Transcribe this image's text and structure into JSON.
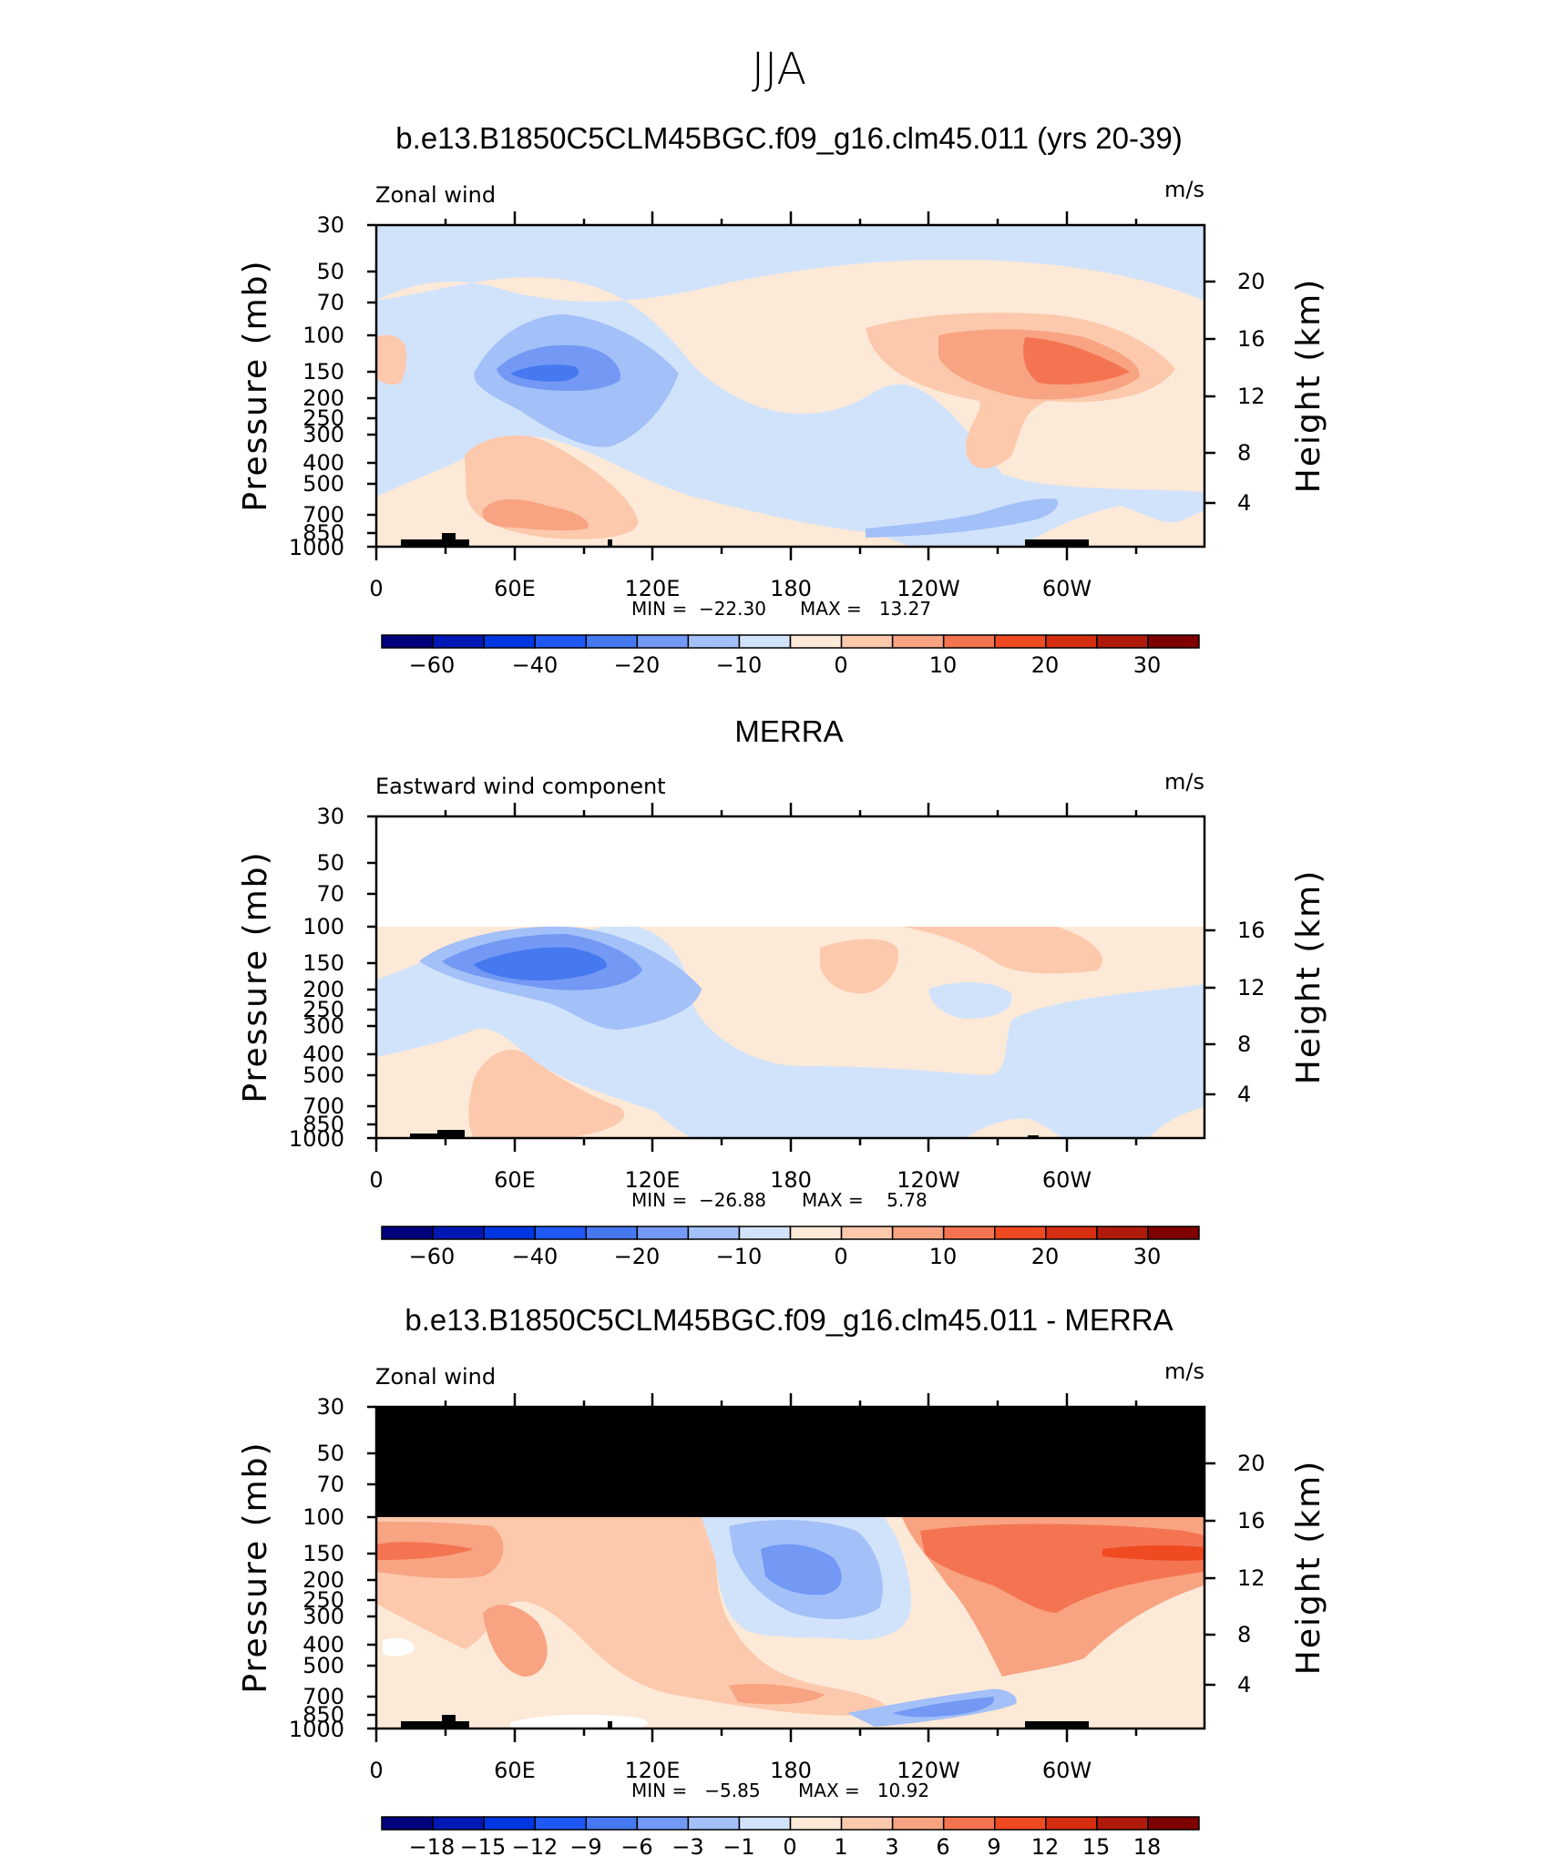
{
  "figure": {
    "title": "JJA"
  },
  "units_label": "m/s",
  "axes": {
    "left_label": "Pressure (mb)",
    "right_label": "Height (km)",
    "pressure_ticks": [
      "30",
      "50",
      "70",
      "100",
      "150",
      "200",
      "250",
      "300",
      "400",
      "500",
      "700",
      "850",
      "1000"
    ],
    "x_ticks": [
      "0",
      "60E",
      "120E",
      "180",
      "120W",
      "60W"
    ]
  },
  "colorbar_main": {
    "colors": [
      "#00007d",
      "#0019b4",
      "#0036e1",
      "#1f58f5",
      "#4679f0",
      "#7399f5",
      "#a3c0f8",
      "#d1e3fb",
      "#fde9d7",
      "#fcc9ad",
      "#f8a382",
      "#f47452",
      "#f04a22",
      "#d62e10",
      "#b01a0a",
      "#7f0000"
    ],
    "labels": [
      "−60",
      "−40",
      "−20",
      "−10",
      "0",
      "10",
      "20",
      "30"
    ]
  },
  "colorbar_diff": {
    "colors": [
      "#00007d",
      "#0019b4",
      "#0036e1",
      "#1f58f5",
      "#4679f0",
      "#7399f5",
      "#a3c0f8",
      "#d1e3fb",
      "#fde9d7",
      "#fcc9ad",
      "#f8a382",
      "#f47452",
      "#f04a22",
      "#d62e10",
      "#b01a0a",
      "#7f0000"
    ],
    "labels": [
      "−18",
      "−15",
      "−12",
      "−9",
      "−6",
      "−3",
      "−1",
      "0",
      "1",
      "3",
      "6",
      "9",
      "12",
      "15",
      "18"
    ]
  },
  "chart_data": [
    {
      "type": "heatmap",
      "title": "b.e13.B1850C5CLM45BGC.f09_g16.clm45.011 (yrs 20-39)",
      "left_string": "Zonal wind",
      "units": "m/s",
      "x": [
        "0",
        "60E",
        "120E",
        "180",
        "120W",
        "60W"
      ],
      "y_pressure_mb": [
        30,
        50,
        70,
        100,
        150,
        200,
        250,
        300,
        400,
        500,
        700,
        850,
        1000
      ],
      "height_km_ticks": [
        "4",
        "8",
        "12",
        "16",
        "20"
      ],
      "min_text": "MIN =  −22.30",
      "max_text": "MAX =   13.27",
      "min": -22.3,
      "max": 13.27
    },
    {
      "type": "heatmap",
      "title": "MERRA",
      "left_string": "Eastward wind component",
      "units": "m/s",
      "x": [
        "0",
        "60E",
        "120E",
        "180",
        "120W",
        "60W"
      ],
      "y_pressure_mb": [
        30,
        50,
        70,
        100,
        150,
        200,
        250,
        300,
        400,
        500,
        700,
        850,
        1000
      ],
      "height_km_ticks": [
        "4",
        "8",
        "12",
        "16"
      ],
      "min_text": "MIN =  −26.88",
      "max_text": "MAX =    5.78",
      "min": -26.88,
      "max": 5.78
    },
    {
      "type": "heatmap",
      "title": "b.e13.B1850C5CLM45BGC.f09_g16.clm45.011 - MERRA",
      "left_string": "Zonal wind",
      "units": "m/s",
      "x": [
        "0",
        "60E",
        "120E",
        "180",
        "120W",
        "60W"
      ],
      "y_pressure_mb": [
        30,
        50,
        70,
        100,
        150,
        200,
        250,
        300,
        400,
        500,
        700,
        850,
        1000
      ],
      "height_km_ticks": [
        "4",
        "8",
        "12",
        "16",
        "20"
      ],
      "min_text": "MIN =   −5.85",
      "max_text": "MAX =   10.92",
      "min": -5.85,
      "max": 10.92
    }
  ]
}
